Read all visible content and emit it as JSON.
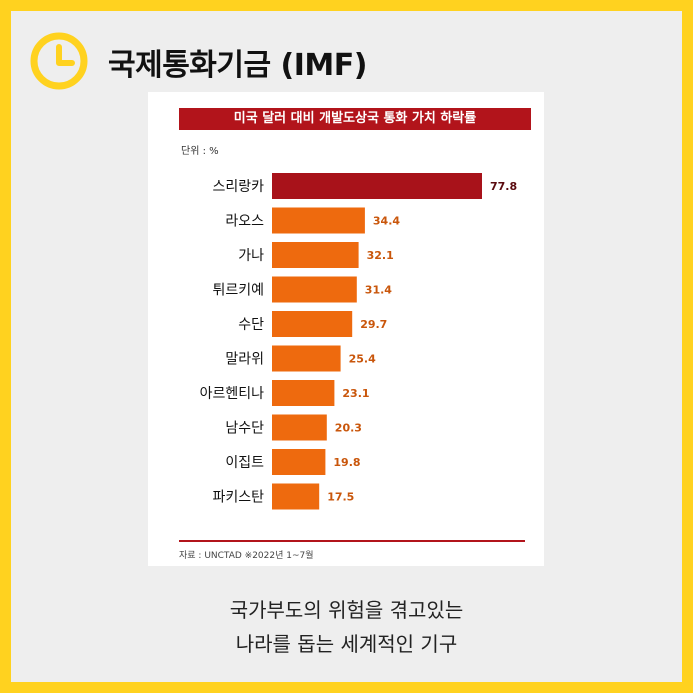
{
  "header": {
    "title": "국제통화기금 (IMF)",
    "icon": "clock-icon"
  },
  "figure": {
    "title": "미국 달러 대비 개발도상국 통화 가치 하락률",
    "unit": "단위 : %",
    "source": "자료 : UNCTAD  ※2022년 1~7월"
  },
  "caption": {
    "line1": "국가부도의 위험을 겪고있는",
    "line2": "나라를 돕는 세계적인 기구"
  },
  "colors": {
    "background": "#FFD21F",
    "card": "#EEEEEE",
    "highlight_bar": "#A8121A",
    "bar": "#EE6A0E",
    "label_highlight": "#5A0A0E",
    "label_normal": "#C9560B",
    "title_bar": "#B2141B"
  },
  "chart_data": {
    "type": "bar",
    "orientation": "horizontal",
    "title": "미국 달러 대비 개발도상국 통화 가치 하락률",
    "unit": "%",
    "categories": [
      "스리랑카",
      "라오스",
      "가나",
      "튀르키예",
      "수단",
      "말라위",
      "아르헨티나",
      "남수단",
      "이집트",
      "파키스탄"
    ],
    "values": [
      77.8,
      34.4,
      32.1,
      31.4,
      29.7,
      25.4,
      23.1,
      20.3,
      19.8,
      17.5
    ],
    "value_labels": [
      "77.8",
      "34.4",
      "32.1",
      "31.4",
      "29.7",
      "25.4",
      "23.1",
      "20.3",
      "19.8",
      "17.5"
    ],
    "highlight_index": 0,
    "legend": false,
    "grid": false
  }
}
